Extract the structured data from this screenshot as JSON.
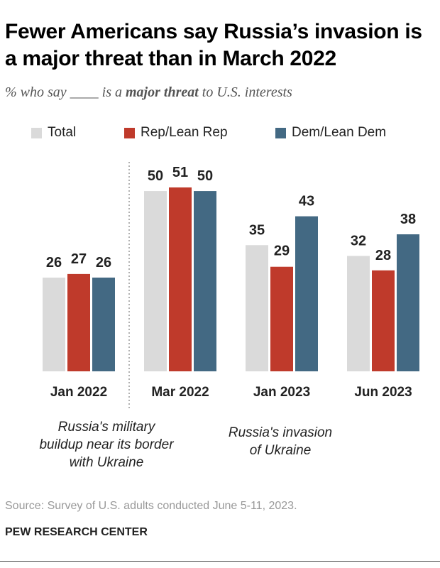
{
  "title": "Fewer Americans say Russia’s invasion is a major threat than in March 2022",
  "subtitle": {
    "before": "% who say ____ is a ",
    "emphasis": "major threat",
    "after": " to U.S. interests"
  },
  "legend": [
    {
      "label": "Total",
      "color": "#dadada"
    },
    {
      "label": "Rep/Lean Rep",
      "color": "#bf3a2b"
    },
    {
      "label": "Dem/Lean Dem",
      "color": "#436983"
    }
  ],
  "annotations": {
    "left": [
      "Russia's military",
      "buildup near its border",
      "with Ukraine"
    ],
    "right": [
      "Russia's invasion",
      "of Ukraine"
    ]
  },
  "source": "Source: Survey of U.S. adults conducted June 5-11, 2023.",
  "brand": "PEW RESEARCH CENTER",
  "chart_data": {
    "type": "bar",
    "categories": [
      "Jan 2022",
      "Mar 2022",
      "Jan 2023",
      "Jun 2023"
    ],
    "series": [
      {
        "name": "Total",
        "color": "#dadada",
        "values": [
          26,
          50,
          35,
          32
        ]
      },
      {
        "name": "Rep/Lean Rep",
        "color": "#bf3a2b",
        "values": [
          27,
          51,
          29,
          28
        ]
      },
      {
        "name": "Dem/Lean Dem",
        "color": "#436983",
        "values": [
          26,
          50,
          43,
          38
        ]
      }
    ],
    "ylim": [
      0,
      51
    ],
    "grid": false,
    "legend_position": "top",
    "divider_after_category": "Jan 2022"
  }
}
